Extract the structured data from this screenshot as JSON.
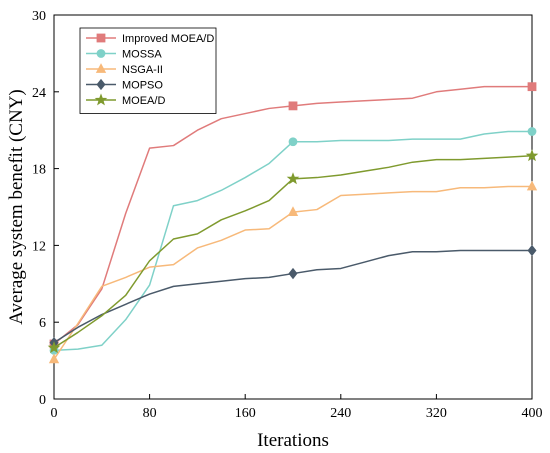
{
  "chart_data": {
    "type": "line",
    "xlabel": "Iterations",
    "ylabel": "Average system benefit (CNY)",
    "xlim": [
      0,
      400
    ],
    "ylim": [
      0,
      30
    ],
    "xticks": [
      0,
      80,
      160,
      240,
      320,
      400
    ],
    "yticks": [
      0,
      6,
      12,
      18,
      24,
      30
    ],
    "grid": false,
    "legend_position": "top-left",
    "series": [
      {
        "name": "Improved MOEA/D",
        "color": "#e07b7b",
        "marker": "square",
        "x": [
          0,
          20,
          40,
          60,
          80,
          100,
          120,
          140,
          160,
          180,
          200,
          220,
          240,
          260,
          280,
          300,
          320,
          340,
          360,
          380,
          400
        ],
        "y": [
          4.3,
          5.8,
          8.6,
          14.5,
          19.6,
          19.8,
          21.0,
          21.9,
          22.3,
          22.7,
          22.9,
          23.1,
          23.2,
          23.3,
          23.4,
          23.5,
          24.0,
          24.2,
          24.4,
          24.4,
          24.4
        ],
        "marker_x": [
          0,
          200,
          400
        ]
      },
      {
        "name": "MOSSA",
        "color": "#7fd1c8",
        "marker": "circle",
        "x": [
          0,
          20,
          40,
          60,
          80,
          100,
          120,
          140,
          160,
          180,
          200,
          220,
          240,
          260,
          280,
          300,
          320,
          340,
          360,
          380,
          400
        ],
        "y": [
          3.8,
          3.9,
          4.2,
          6.2,
          8.9,
          15.1,
          15.5,
          16.3,
          17.3,
          18.4,
          20.1,
          20.1,
          20.2,
          20.2,
          20.2,
          20.3,
          20.3,
          20.3,
          20.7,
          20.9,
          20.9
        ],
        "marker_x": [
          0,
          200,
          400
        ]
      },
      {
        "name": "NSGA-II",
        "color": "#f7b97a",
        "marker": "triangle",
        "x": [
          0,
          20,
          40,
          60,
          80,
          100,
          120,
          140,
          160,
          180,
          200,
          220,
          240,
          260,
          280,
          300,
          320,
          340,
          360,
          380,
          400
        ],
        "y": [
          3.1,
          5.9,
          8.8,
          9.5,
          10.3,
          10.5,
          11.8,
          12.4,
          13.2,
          13.3,
          14.6,
          14.8,
          15.9,
          16.0,
          16.1,
          16.2,
          16.2,
          16.5,
          16.5,
          16.6,
          16.6
        ],
        "marker_x": [
          0,
          200,
          400
        ]
      },
      {
        "name": "MOPSO",
        "color": "#4a5a6a",
        "marker": "diamond",
        "x": [
          0,
          20,
          40,
          60,
          80,
          100,
          120,
          140,
          160,
          180,
          200,
          220,
          240,
          260,
          280,
          300,
          320,
          340,
          360,
          380,
          400
        ],
        "y": [
          4.4,
          5.6,
          6.6,
          7.4,
          8.2,
          8.8,
          9.0,
          9.2,
          9.4,
          9.5,
          9.8,
          10.1,
          10.2,
          10.7,
          11.2,
          11.5,
          11.5,
          11.6,
          11.6,
          11.6,
          11.6
        ],
        "marker_x": [
          0,
          200,
          400
        ]
      },
      {
        "name": "MOEA/D",
        "color": "#7f9a2e",
        "marker": "star",
        "x": [
          0,
          20,
          40,
          60,
          80,
          100,
          120,
          140,
          160,
          180,
          200,
          220,
          240,
          260,
          280,
          300,
          320,
          340,
          360,
          380,
          400
        ],
        "y": [
          4.0,
          5.2,
          6.5,
          8.1,
          10.8,
          12.5,
          12.9,
          14.0,
          14.7,
          15.5,
          17.2,
          17.3,
          17.5,
          17.8,
          18.1,
          18.5,
          18.7,
          18.7,
          18.8,
          18.9,
          19.0
        ],
        "marker_x": [
          0,
          200,
          400
        ]
      }
    ]
  }
}
